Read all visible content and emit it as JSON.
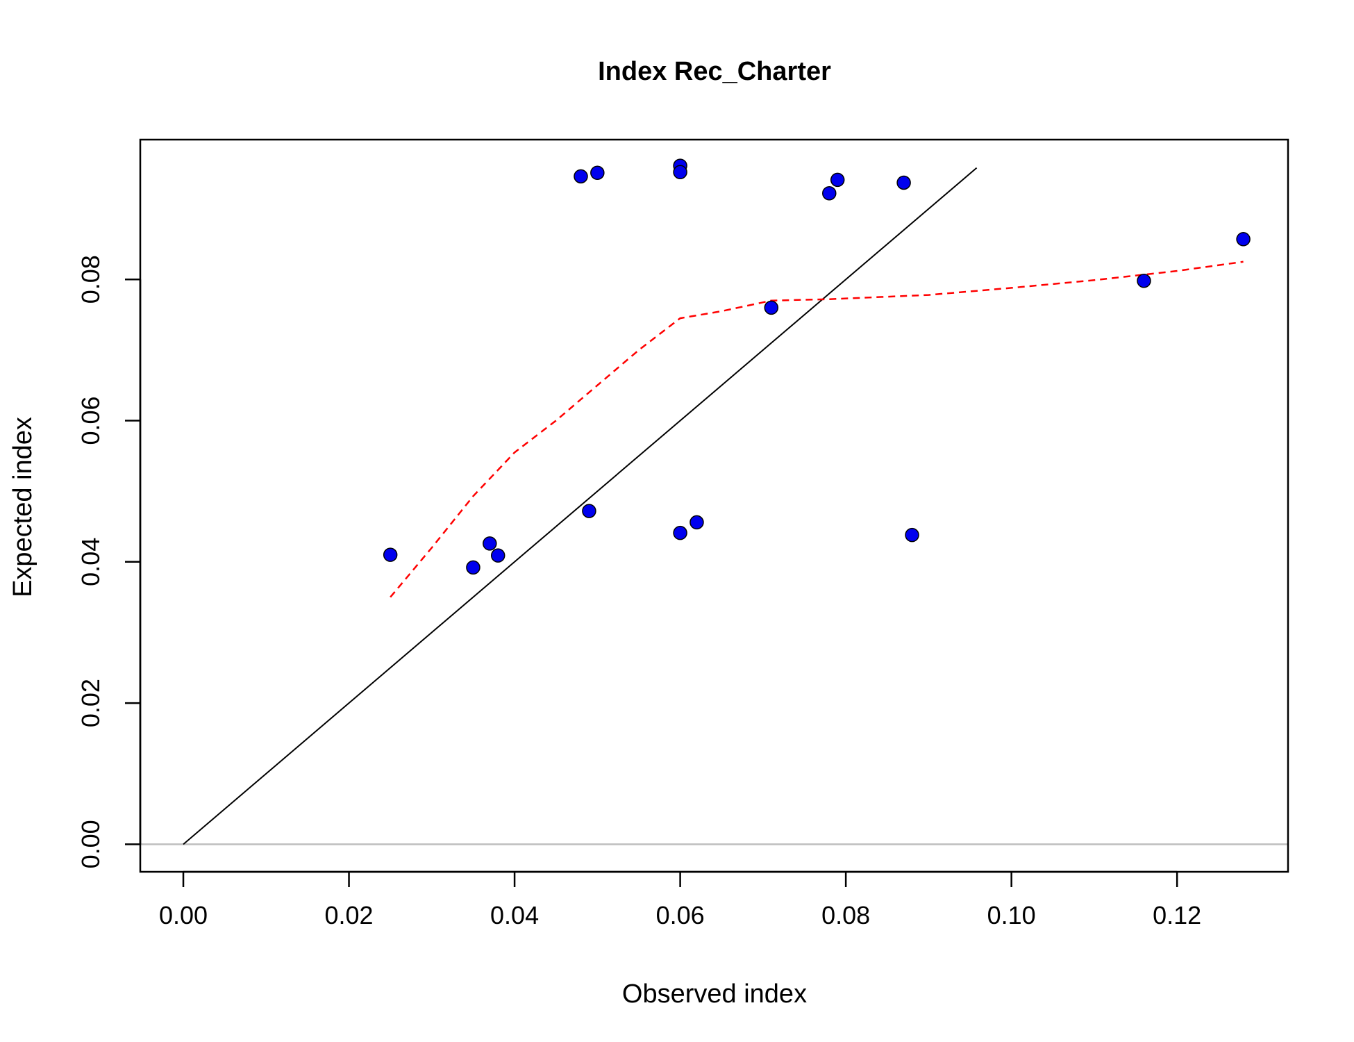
{
  "chart_data": {
    "type": "scatter",
    "title": "Index Rec_Charter",
    "xlabel": "Observed index",
    "ylabel": "Expected index",
    "xlim": [
      -0.0052,
      0.1334
    ],
    "ylim": [
      -0.0039,
      0.0998
    ],
    "x_ticks": [
      "0.00",
      "0.02",
      "0.04",
      "0.06",
      "0.08",
      "0.10",
      "0.12"
    ],
    "y_ticks": [
      "0.00",
      "0.02",
      "0.04",
      "0.06",
      "0.08"
    ],
    "points": {
      "x": [
        0.025,
        0.035,
        0.037,
        0.038,
        0.048,
        0.049,
        0.05,
        0.06,
        0.06,
        0.06,
        0.062,
        0.071,
        0.078,
        0.079,
        0.087,
        0.088,
        0.116,
        0.128
      ],
      "y": [
        0.041,
        0.0392,
        0.0426,
        0.0409,
        0.0946,
        0.0472,
        0.0951,
        0.0961,
        0.0952,
        0.0441,
        0.0456,
        0.076,
        0.0922,
        0.0941,
        0.0937,
        0.0438,
        0.0798,
        0.0857
      ],
      "fill": "#0000ee",
      "stroke": "#000000"
    },
    "identity_line": {
      "from": [
        0.0,
        0.0
      ],
      "to": [
        0.0958,
        0.0958
      ],
      "color": "#000000"
    },
    "smoother": {
      "x": [
        0.025,
        0.03,
        0.035,
        0.04,
        0.045,
        0.05,
        0.055,
        0.06,
        0.065,
        0.071,
        0.078,
        0.09,
        0.1,
        0.11,
        0.12,
        0.128
      ],
      "y": [
        0.035,
        0.042,
        0.0493,
        0.0555,
        0.06,
        0.065,
        0.07,
        0.0745,
        0.0755,
        0.077,
        0.0772,
        0.0778,
        0.0788,
        0.0799,
        0.0812,
        0.0825
      ],
      "color": "#ff0000"
    },
    "zero_line": {
      "y": 0.0,
      "color": "#bebebe"
    }
  }
}
